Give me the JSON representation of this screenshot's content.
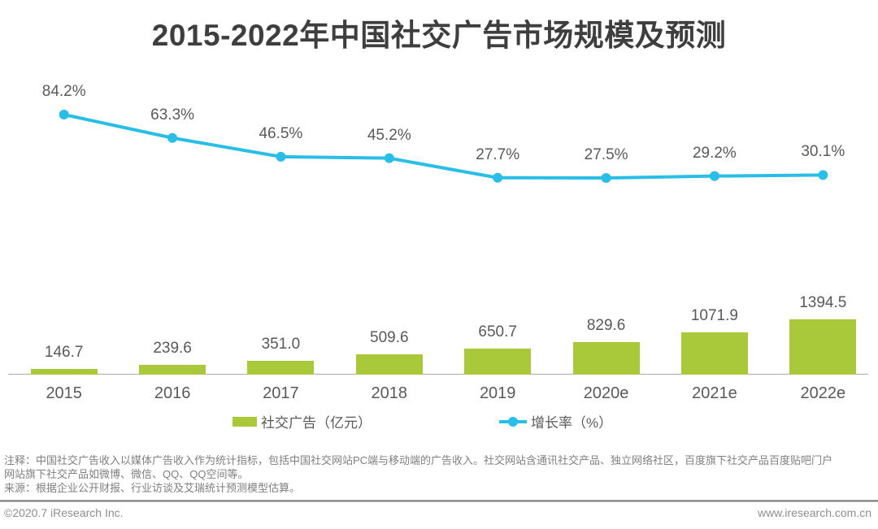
{
  "chart_data": {
    "type": "combo-bar-line",
    "title": "2015-2022年中国社交广告市场规模及预测",
    "categories": [
      "2015",
      "2016",
      "2017",
      "2018",
      "2019",
      "2020e",
      "2021e",
      "2022e"
    ],
    "series": [
      {
        "name": "社交广告（亿元）",
        "type": "bar",
        "unit": "亿元",
        "color": "#a9c93b",
        "values": [
          146.7,
          239.6,
          351.0,
          509.6,
          650.7,
          829.6,
          1071.9,
          1394.5
        ]
      },
      {
        "name": "增长率（%）",
        "type": "line",
        "unit": "%",
        "color": "#29bee8",
        "values": [
          84.2,
          63.3,
          46.5,
          45.2,
          27.7,
          27.5,
          29.2,
          30.1
        ]
      }
    ],
    "value_labels": "on",
    "grid": "off",
    "legend_position": "bottom"
  },
  "legend": {
    "bar_label": "社交广告（亿元）",
    "line_label": "增长率（%）"
  },
  "page": {
    "note": "注释：中国社交广告收入以媒体广告收入作为统计指标，包括中国社交网站PC端与移动端的广告收入。社交网站含通讯社交产品、独立网络社区，百度旗下社交产品百度贴吧门户网站旗下社交产品如微博、微信、QQ、QQ空间等。",
    "source": "来源：根据企业公开财报、行业访谈及艾瑞统计预测模型估算。",
    "footer_left": "©2020.7 iResearch Inc.",
    "footer_right": "www.iresearch.com.cn"
  },
  "colors": {
    "bar_green": "#a9c93b",
    "line_cyan": "#29bee8",
    "title_text": "#3e3e3e",
    "label_text": "#595959",
    "note_text": "#7f7f7f",
    "axis_line": "#ababab"
  }
}
